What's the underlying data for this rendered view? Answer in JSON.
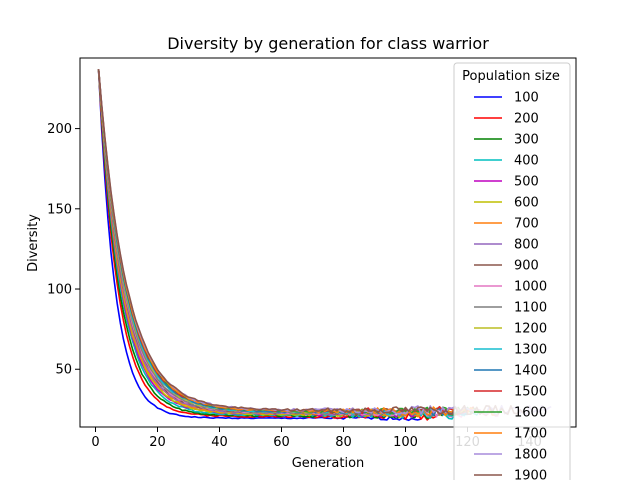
{
  "chart_data": {
    "type": "line",
    "title": "Diversity by generation for class warrior",
    "xlabel": "Generation",
    "ylabel": "Diversity",
    "xlim": [
      -5,
      155
    ],
    "ylim": [
      14,
      244
    ],
    "xticks": [
      0,
      20,
      40,
      60,
      80,
      100,
      120,
      140
    ],
    "yticks": [
      50,
      100,
      150,
      200
    ],
    "grid": false,
    "legend": {
      "title": "Population size",
      "placement": "top-right"
    },
    "series": [
      {
        "name": "100",
        "color": "#0000ff",
        "last_gen": 105,
        "k": 0.185,
        "floor": 19.5,
        "start": 236,
        "amp": 1.6,
        "seed": 1
      },
      {
        "name": "200",
        "color": "#ff0000",
        "last_gen": 110,
        "k": 0.16,
        "floor": 20.5,
        "start": 236,
        "amp": 2.2,
        "seed": 2
      },
      {
        "name": "300",
        "color": "#008000",
        "last_gen": 112,
        "k": 0.15,
        "floor": 21.0,
        "start": 236,
        "amp": 2.4,
        "seed": 3
      },
      {
        "name": "400",
        "color": "#00bfbf",
        "last_gen": 118,
        "k": 0.142,
        "floor": 21.5,
        "start": 237,
        "amp": 2.6,
        "seed": 4
      },
      {
        "name": "500",
        "color": "#bf00bf",
        "last_gen": 103,
        "k": 0.138,
        "floor": 22.0,
        "start": 237,
        "amp": 2.2,
        "seed": 5
      },
      {
        "name": "600",
        "color": "#bfbf00",
        "last_gen": 104,
        "k": 0.134,
        "floor": 22.0,
        "start": 237,
        "amp": 2.6,
        "seed": 6
      },
      {
        "name": "700",
        "color": "#ff7f0e",
        "last_gen": 106,
        "k": 0.131,
        "floor": 22.5,
        "start": 237,
        "amp": 2.4,
        "seed": 7
      },
      {
        "name": "800",
        "color": "#9467bd",
        "last_gen": 108,
        "k": 0.128,
        "floor": 22.5,
        "start": 237,
        "amp": 2.5,
        "seed": 8
      },
      {
        "name": "900",
        "color": "#8c564b",
        "last_gen": 109,
        "k": 0.126,
        "floor": 23.0,
        "start": 237,
        "amp": 2.6,
        "seed": 9
      },
      {
        "name": "1000",
        "color": "#e377c2",
        "last_gen": 130,
        "k": 0.124,
        "floor": 23.0,
        "start": 237,
        "amp": 2.8,
        "seed": 10
      },
      {
        "name": "1100",
        "color": "#7f7f7f",
        "last_gen": 112,
        "k": 0.122,
        "floor": 23.0,
        "start": 237,
        "amp": 2.4,
        "seed": 11
      },
      {
        "name": "1200",
        "color": "#bcbd22",
        "last_gen": 114,
        "k": 0.12,
        "floor": 23.5,
        "start": 237,
        "amp": 2.6,
        "seed": 12
      },
      {
        "name": "1300",
        "color": "#17becf",
        "last_gen": 124,
        "k": 0.118,
        "floor": 23.5,
        "start": 237,
        "amp": 2.8,
        "seed": 13
      },
      {
        "name": "1400",
        "color": "#1f77b4",
        "last_gen": 120,
        "k": 0.116,
        "floor": 23.5,
        "start": 237,
        "amp": 2.5,
        "seed": 14
      },
      {
        "name": "1500",
        "color": "#d62728",
        "last_gen": 122,
        "k": 0.115,
        "floor": 24.0,
        "start": 237,
        "amp": 2.7,
        "seed": 15
      },
      {
        "name": "1600",
        "color": "#2ca02c",
        "last_gen": 125,
        "k": 0.114,
        "floor": 24.0,
        "start": 237,
        "amp": 2.6,
        "seed": 16
      },
      {
        "name": "1700",
        "color": "#ff7f0e",
        "last_gen": 130,
        "k": 0.113,
        "floor": 24.0,
        "start": 237,
        "amp": 2.7,
        "seed": 17
      },
      {
        "name": "1800",
        "color": "#a78bdb",
        "last_gen": 147,
        "k": 0.112,
        "floor": 24.5,
        "start": 237,
        "amp": 2.9,
        "seed": 18
      },
      {
        "name": "1900",
        "color": "#8c564b",
        "last_gen": 138,
        "k": 0.111,
        "floor": 24.5,
        "start": 237,
        "amp": 2.8,
        "seed": 19
      }
    ]
  }
}
